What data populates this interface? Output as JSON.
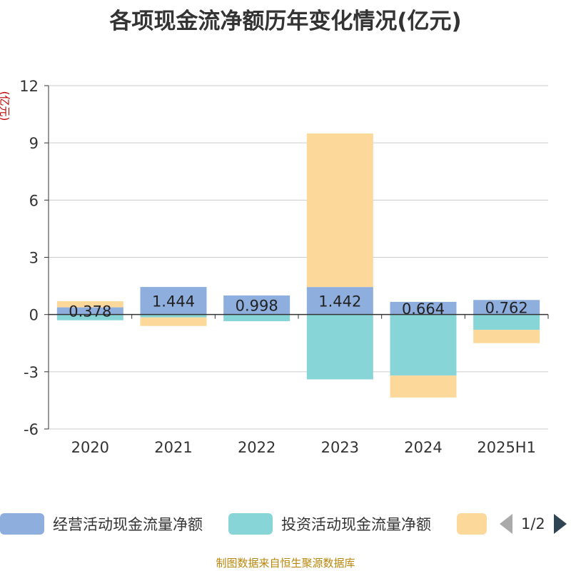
{
  "title": "各项现金流净额历年变化情况(亿元)",
  "source": "制图数据来自恒生聚源数据库",
  "pager": {
    "text": "1/2"
  },
  "chart_data": {
    "type": "bar",
    "stacked": true,
    "title": "各项现金流净额历年变化情况(亿元)",
    "ylabel": "(亿元)",
    "ylim": [
      -6,
      12
    ],
    "yticks": [
      -6,
      -3,
      0,
      3,
      6,
      9,
      12
    ],
    "grid": true,
    "legend_position": "bottom",
    "categories": [
      "2020",
      "2021",
      "2022",
      "2023",
      "2024",
      "2025H1"
    ],
    "series": [
      {
        "name": "经营活动现金流量净额",
        "color": "#8eaedd",
        "values": [
          0.378,
          1.444,
          0.998,
          1.442,
          0.664,
          0.762
        ],
        "labels": [
          "0.378",
          "1.444",
          "0.998",
          "1.442",
          "0.664",
          "0.762"
        ]
      },
      {
        "name": "投资活动现金流量净额",
        "color": "#88d5d8",
        "values": [
          -0.3,
          -0.15,
          -0.35,
          -3.4,
          -3.2,
          -0.8
        ]
      },
      {
        "name": "",
        "color": "#fdd89b",
        "values": [
          0.32,
          -0.45,
          0.0,
          8.05,
          -1.15,
          -0.7
        ]
      }
    ]
  }
}
